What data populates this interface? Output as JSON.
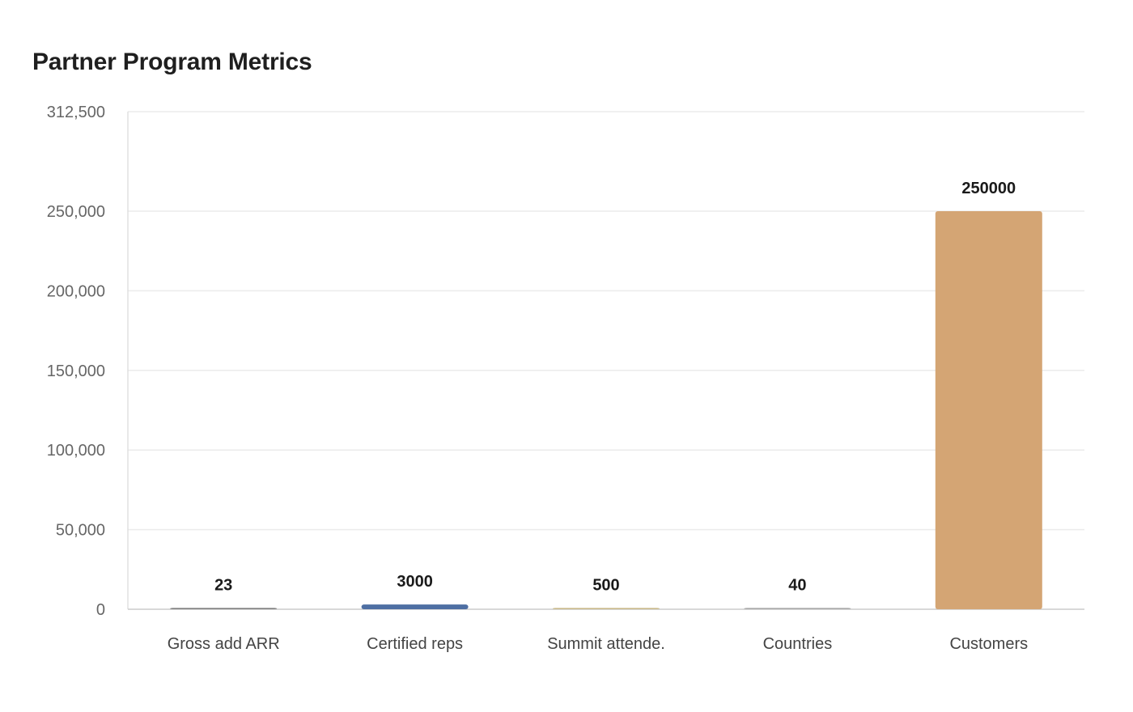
{
  "chart_data": {
    "type": "bar",
    "title": "Partner Program Metrics",
    "categories": [
      "Gross add ARR",
      "Certified reps",
      "Summit attende.",
      "Countries",
      "Customers"
    ],
    "values": [
      23,
      3000,
      500,
      40,
      250000
    ],
    "data_labels": [
      "23",
      "3000",
      "500",
      "40",
      "250000"
    ],
    "bar_colors": [
      "#7f7f7f",
      "#4e6fa3",
      "#c9b98a",
      "#a8a8a8",
      "#d4a574"
    ],
    "ylim": [
      0,
      312500
    ],
    "yticks": [
      0,
      50000,
      100000,
      150000,
      200000,
      250000,
      312500
    ],
    "ytick_labels": [
      "0",
      "50,000",
      "100,000",
      "150,000",
      "200,000",
      "250,000",
      "312,500"
    ],
    "grid": true,
    "xlabel": "",
    "ylabel": ""
  }
}
